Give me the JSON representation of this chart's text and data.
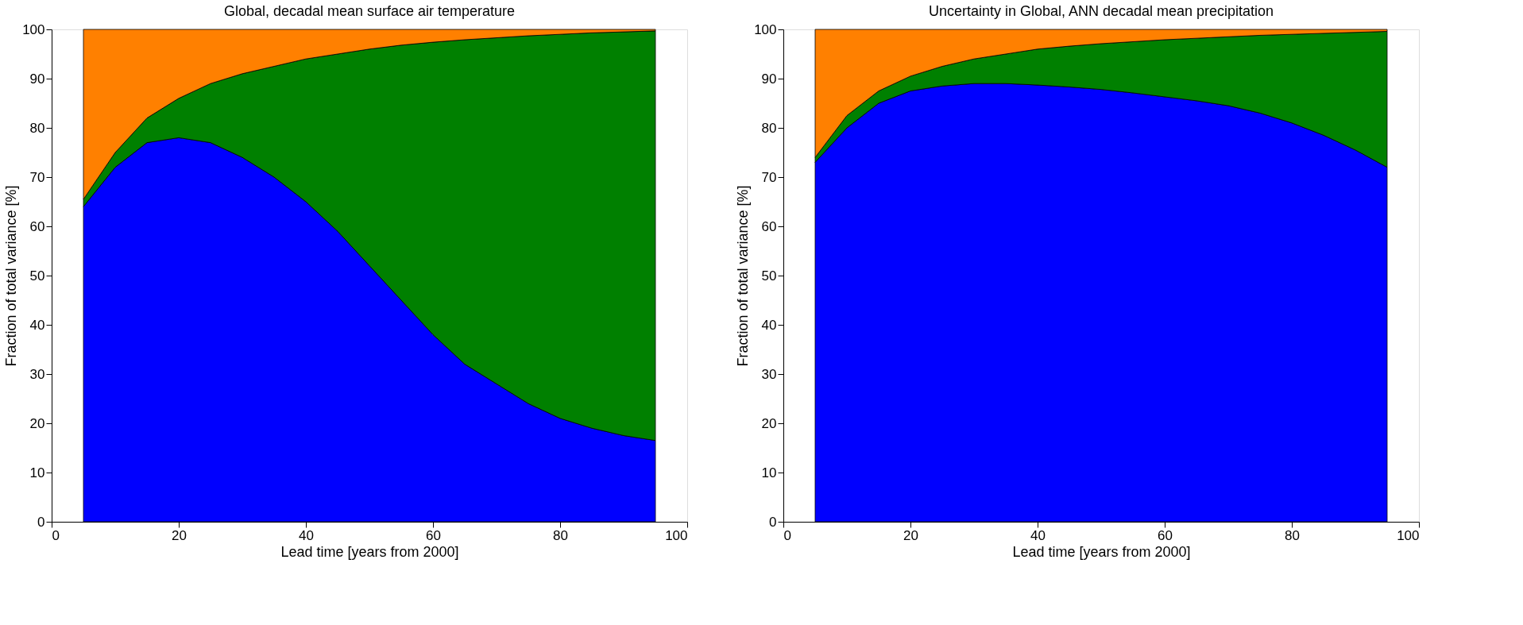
{
  "chart_data": [
    {
      "type": "area",
      "stacked": true,
      "title": "Global, decadal mean surface air temperature",
      "xlabel": "Lead time  [years from 2000]",
      "ylabel": "Fraction of total variance  [%]",
      "x": [
        5,
        10,
        15,
        20,
        25,
        30,
        35,
        40,
        45,
        50,
        55,
        60,
        65,
        70,
        75,
        80,
        85,
        90,
        95
      ],
      "series": [
        {
          "color": "#0000ff",
          "values": [
            64,
            72,
            77,
            78,
            77,
            74,
            70,
            65,
            59,
            52,
            45,
            38,
            32,
            28,
            24,
            21,
            19,
            17.5,
            16.5
          ]
        },
        {
          "color": "#008000",
          "values": [
            1.5,
            3,
            5,
            8,
            12,
            17,
            22.5,
            29,
            36,
            44,
            51.8,
            59.4,
            65.9,
            70.3,
            74.7,
            78,
            80.3,
            82,
            83.2
          ]
        },
        {
          "color": "#ff8000",
          "values": [
            34.5,
            25,
            18,
            14,
            11,
            9,
            7.5,
            6,
            5,
            4,
            3.2,
            2.6,
            2.1,
            1.7,
            1.3,
            1,
            0.7,
            0.5,
            0.3
          ]
        }
      ],
      "xlim": [
        0,
        100
      ],
      "xticks": [
        0,
        20,
        40,
        60,
        80,
        100
      ],
      "ylim": [
        0,
        100
      ],
      "yticks": [
        0,
        10,
        20,
        30,
        40,
        50,
        60,
        70,
        80,
        90,
        100
      ]
    },
    {
      "type": "area",
      "stacked": true,
      "title": "Uncertainty in Global, ANN decadal mean precipitation",
      "xlabel": "Lead time  [years from 2000]",
      "ylabel": "Fraction of total variance  [%]",
      "x": [
        5,
        10,
        15,
        20,
        25,
        30,
        35,
        40,
        45,
        50,
        55,
        60,
        65,
        70,
        75,
        80,
        85,
        90,
        95
      ],
      "series": [
        {
          "color": "#0000ff",
          "values": [
            73,
            80,
            85,
            87.5,
            88.5,
            89,
            89,
            88.7,
            88.3,
            87.8,
            87.1,
            86.3,
            85.5,
            84.5,
            83,
            81,
            78.5,
            75.5,
            72
          ]
        },
        {
          "color": "#008000",
          "values": [
            1,
            2.5,
            2.5,
            3,
            4,
            5,
            6,
            7.3,
            8.3,
            9.3,
            10.4,
            11.6,
            12.7,
            14,
            15.8,
            18,
            20.7,
            23.9,
            27.6
          ]
        },
        {
          "color": "#ff8000",
          "values": [
            26,
            17.5,
            12.5,
            9.5,
            7.5,
            6,
            5,
            4,
            3.4,
            2.9,
            2.5,
            2.1,
            1.8,
            1.5,
            1.2,
            1,
            0.8,
            0.6,
            0.4
          ]
        }
      ],
      "xlim": [
        0,
        100
      ],
      "xticks": [
        0,
        20,
        40,
        60,
        80,
        100
      ],
      "ylim": [
        0,
        100
      ],
      "yticks": [
        0,
        10,
        20,
        30,
        40,
        50,
        60,
        70,
        80,
        90,
        100
      ]
    }
  ]
}
